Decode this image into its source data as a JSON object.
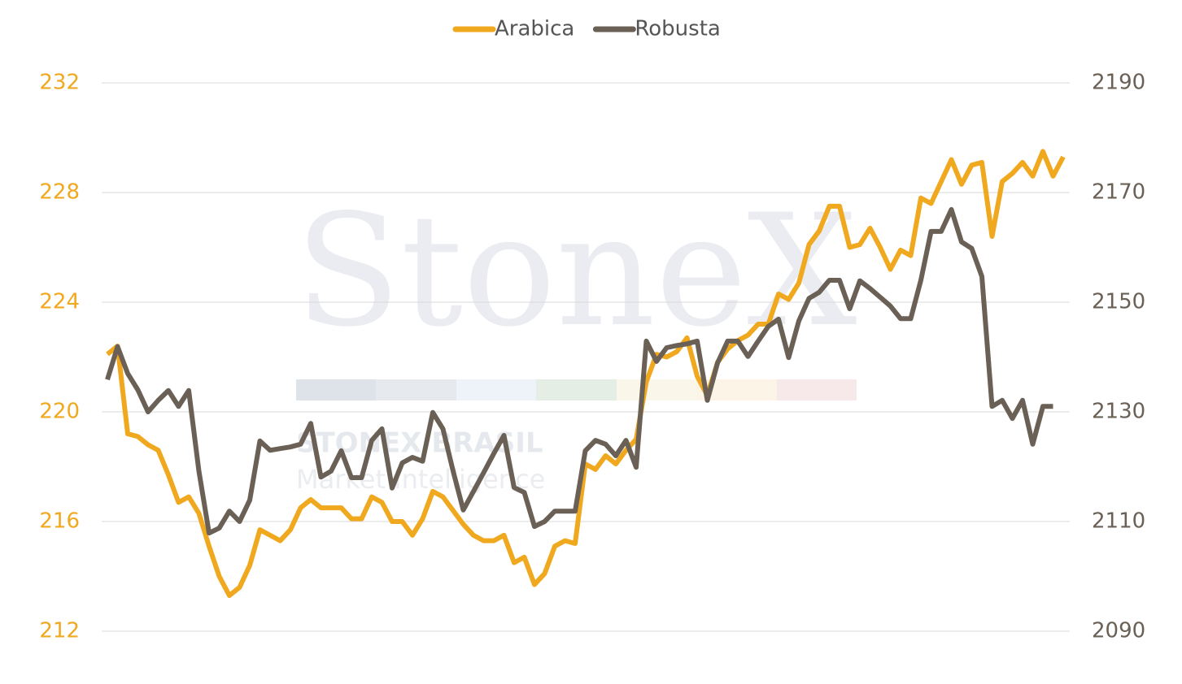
{
  "chart_data": {
    "type": "line",
    "watermark": {
      "logo": "StoneX",
      "company": "STONEX BRASIL",
      "tagline": "Market Intelligence"
    },
    "legend": "top",
    "grid": true,
    "ylim": [
      212,
      232
    ],
    "yticks": [
      212,
      216,
      220,
      224,
      228,
      232
    ],
    "y2lim": [
      2090,
      2190
    ],
    "y2ticks": [
      2090,
      2110,
      2130,
      2150,
      2170,
      2190
    ],
    "series": [
      {
        "name": "Arabica",
        "color": "#f0a81f",
        "axis": "y",
        "values": [
          222.1,
          222.4,
          219.2,
          219.1,
          218.8,
          218.6,
          217.7,
          216.7,
          216.9,
          216.3,
          215.1,
          214.0,
          213.3,
          213.6,
          214.4,
          215.7,
          215.5,
          215.3,
          215.7,
          216.5,
          216.8,
          216.5,
          216.5,
          216.5,
          216.1,
          216.1,
          216.9,
          216.7,
          216.0,
          216.0,
          215.5,
          216.1,
          217.1,
          216.9,
          216.4,
          215.9,
          215.5,
          215.3,
          215.3,
          215.5,
          214.5,
          214.7,
          213.7,
          214.1,
          215.1,
          215.3,
          215.2,
          218.1,
          217.9,
          218.4,
          218.1,
          218.6,
          219.0,
          221.1,
          222.1,
          222.0,
          222.2,
          222.7,
          221.3,
          220.6,
          221.8,
          222.3,
          222.6,
          222.8,
          223.2,
          223.2,
          224.3,
          224.1,
          224.7,
          226.1,
          226.6,
          227.5,
          227.5,
          226.0,
          226.1,
          226.7,
          226.0,
          225.2,
          225.9,
          225.7,
          227.8,
          227.6,
          228.4,
          229.2,
          228.3,
          229.0,
          229.1,
          226.4,
          228.4,
          228.7,
          229.1,
          228.6,
          229.5,
          228.6,
          229.3
        ]
      },
      {
        "name": "Robusta",
        "color": "#6a6056",
        "axis": "y2",
        "values": [
          2135.9,
          2141.9,
          2137.0,
          2134.0,
          2130.0,
          2132.1,
          2133.9,
          2131.0,
          2133.9,
          2119.2,
          2107.9,
          2108.8,
          2111.9,
          2110.0,
          2113.9,
          2124.7,
          2123.0,
          2123.3,
          2123.6,
          2124.1,
          2127.9,
          2118.1,
          2119.2,
          2122.9,
          2118.0,
          2118.0,
          2124.8,
          2126.9,
          2116.1,
          2120.7,
          2121.7,
          2121.0,
          2129.9,
          2126.9,
          2119.2,
          2112.1,
          2115.5,
          2118.9,
          2122.4,
          2125.7,
          2116.2,
          2115.3,
          2109.1,
          2110.0,
          2111.9,
          2111.9,
          2111.9,
          2122.9,
          2124.8,
          2124.1,
          2122.0,
          2124.8,
          2119.9,
          2142.9,
          2139.2,
          2141.7,
          2142.1,
          2142.4,
          2142.9,
          2132.1,
          2138.9,
          2142.9,
          2142.9,
          2140.1,
          2142.9,
          2145.6,
          2146.9,
          2139.9,
          2146.6,
          2150.7,
          2151.8,
          2154.0,
          2154.0,
          2148.8,
          2153.9,
          2152.5,
          2150.9,
          2149.3,
          2147.0,
          2147.0,
          2154.0,
          2162.9,
          2162.9,
          2166.9,
          2161.0,
          2159.8,
          2154.7,
          2131.0,
          2132.1,
          2128.8,
          2132.1,
          2124.1,
          2131.0,
          2131.0,
          null
        ]
      }
    ]
  }
}
